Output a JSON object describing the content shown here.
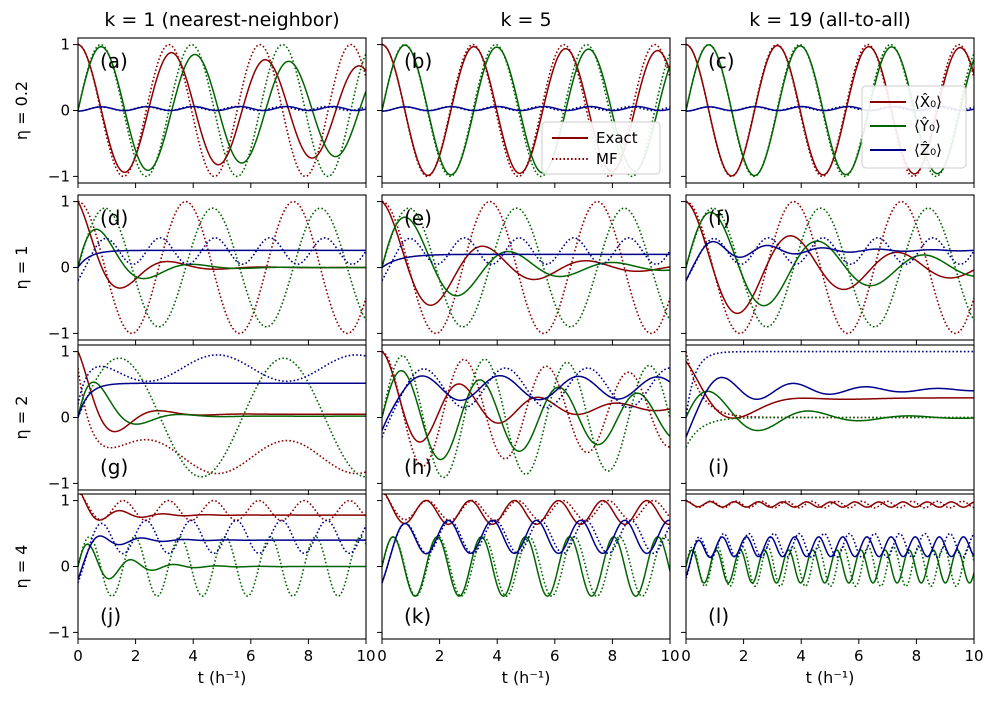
{
  "chart_data": {
    "type": "line",
    "x_label": "t (h⁻¹)",
    "x_range": [
      0,
      10
    ],
    "x_ticks": [
      "0",
      "2",
      "4",
      "6",
      "8",
      "10"
    ],
    "y_range": [
      -1.1,
      1.1
    ],
    "y_ticks": [
      "−1",
      "0",
      "1"
    ],
    "column_titles": [
      "k = 1 (nearest-neighbor)",
      "k = 5",
      "k = 19 (all-to-all)"
    ],
    "row_labels": [
      "η = 0.2",
      "η = 1",
      "η = 2",
      "η = 4"
    ],
    "colors": {
      "X": "#8b0000",
      "Y": "#006400",
      "Z": "#00008b"
    },
    "legend_style": {
      "labels": [
        "Exact",
        "MF"
      ],
      "panel": "b",
      "location": "lower-right"
    },
    "legend_observables": {
      "labels": [
        "⟨X̂₀⟩",
        "⟨Ŷ₀⟩",
        "⟨Ẑ₀⟩"
      ],
      "panel": "c",
      "location": "center-right"
    },
    "series_info": "Solid = Exact dynamics, dotted = MF (mean field). Each series given as damped cosine parameters (amplitude A, angular frequency w, phase p, damping g, offset c with relaxation time tau): value(t) = c_inf + (c0 - c_inf)exp(-t/tau) + A exp(-g t) cos(w t + p).",
    "panels": [
      {
        "id": "a",
        "label": "(a)",
        "row": 0,
        "col": 0,
        "series": [
          {
            "obs": "X",
            "style": "Exact",
            "A": 1.0,
            "w": 1.93,
            "p": 0,
            "g": 0.04,
            "c0": 0,
            "cinf": 0,
            "tau": 1
          },
          {
            "obs": "X",
            "style": "MF",
            "A": 1.0,
            "w": 1.99,
            "p": 0,
            "g": 0.0,
            "c0": 0,
            "cinf": 0,
            "tau": 1
          },
          {
            "obs": "Y",
            "style": "Exact",
            "A": -1.0,
            "w": 1.93,
            "p": 1.5708,
            "g": 0.04,
            "c0": 0,
            "cinf": 0,
            "tau": 1
          },
          {
            "obs": "Y",
            "style": "MF",
            "A": -1.0,
            "w": 1.99,
            "p": 1.5708,
            "g": 0.0,
            "c0": 0,
            "cinf": 0,
            "tau": 1
          },
          {
            "obs": "Z",
            "style": "Exact",
            "A": 0.03,
            "w": 3.9,
            "p": 3.14,
            "g": 0.0,
            "c0": 0.02,
            "cinf": 0.03,
            "tau": 1
          },
          {
            "obs": "Z",
            "style": "MF",
            "A": 0.03,
            "w": 4.0,
            "p": 3.14,
            "g": 0.0,
            "c0": 0.02,
            "cinf": 0.03,
            "tau": 1
          }
        ]
      },
      {
        "id": "b",
        "label": "(b)",
        "row": 0,
        "col": 1,
        "series": [
          {
            "obs": "X",
            "style": "Exact",
            "A": 1.0,
            "w": 1.97,
            "p": 0,
            "g": 0.01,
            "c0": 0,
            "cinf": 0,
            "tau": 1
          },
          {
            "obs": "X",
            "style": "MF",
            "A": 1.0,
            "w": 1.99,
            "p": 0,
            "g": 0.0,
            "c0": 0,
            "cinf": 0,
            "tau": 1
          },
          {
            "obs": "Y",
            "style": "Exact",
            "A": -1.0,
            "w": 1.97,
            "p": 1.5708,
            "g": 0.01,
            "c0": 0,
            "cinf": 0,
            "tau": 1
          },
          {
            "obs": "Y",
            "style": "MF",
            "A": -1.0,
            "w": 1.99,
            "p": 1.5708,
            "g": 0.0,
            "c0": 0,
            "cinf": 0,
            "tau": 1
          },
          {
            "obs": "Z",
            "style": "Exact",
            "A": 0.03,
            "w": 3.9,
            "p": 3.14,
            "g": 0.0,
            "c0": 0.02,
            "cinf": 0.03,
            "tau": 1
          },
          {
            "obs": "Z",
            "style": "MF",
            "A": 0.03,
            "w": 4.0,
            "p": 3.14,
            "g": 0.0,
            "c0": 0.02,
            "cinf": 0.03,
            "tau": 1
          }
        ]
      },
      {
        "id": "c",
        "label": "(c)",
        "row": 0,
        "col": 2,
        "series": [
          {
            "obs": "X",
            "style": "Exact",
            "A": 1.0,
            "w": 1.98,
            "p": 0,
            "g": 0.005,
            "c0": 0,
            "cinf": 0,
            "tau": 1
          },
          {
            "obs": "X",
            "style": "MF",
            "A": 1.0,
            "w": 1.99,
            "p": 0,
            "g": 0.0,
            "c0": 0,
            "cinf": 0,
            "tau": 1
          },
          {
            "obs": "Y",
            "style": "Exact",
            "A": -1.0,
            "w": 1.98,
            "p": 1.5708,
            "g": 0.005,
            "c0": 0,
            "cinf": 0,
            "tau": 1
          },
          {
            "obs": "Y",
            "style": "MF",
            "A": -1.0,
            "w": 1.99,
            "p": 1.5708,
            "g": 0.0,
            "c0": 0,
            "cinf": 0,
            "tau": 1
          },
          {
            "obs": "Z",
            "style": "Exact",
            "A": 0.03,
            "w": 3.9,
            "p": 3.14,
            "g": 0.0,
            "c0": 0.02,
            "cinf": 0.03,
            "tau": 1
          },
          {
            "obs": "Z",
            "style": "MF",
            "A": 0.03,
            "w": 4.0,
            "p": 3.14,
            "g": 0.0,
            "c0": 0.02,
            "cinf": 0.03,
            "tau": 1
          }
        ]
      },
      {
        "id": "d",
        "label": "(d)",
        "row": 1,
        "col": 0,
        "series": [
          {
            "obs": "X",
            "style": "Exact",
            "A": 1.0,
            "w": 1.9,
            "p": 0,
            "g": 0.75,
            "c0": 0,
            "cinf": 0,
            "tau": 1
          },
          {
            "obs": "X",
            "style": "MF",
            "A": 1.0,
            "w": 1.68,
            "p": 0,
            "g": 0.0,
            "c0": 0,
            "cinf": 0,
            "tau": 1
          },
          {
            "obs": "Y",
            "style": "Exact",
            "A": -1.0,
            "w": 1.9,
            "p": 1.5708,
            "g": 0.75,
            "c0": 0,
            "cinf": 0,
            "tau": 1
          },
          {
            "obs": "Y",
            "style": "MF",
            "A": -0.9,
            "w": 1.68,
            "p": 1.5708,
            "g": 0.0,
            "c0": 0,
            "cinf": 0,
            "tau": 1
          },
          {
            "obs": "Z",
            "style": "Exact",
            "A": 0.0,
            "w": 1.9,
            "p": 0,
            "g": 0.0,
            "c0": 0,
            "cinf": 0.26,
            "tau": 0.4
          },
          {
            "obs": "Z",
            "style": "MF",
            "A": 0.2,
            "w": 3.3,
            "p": 3.14,
            "g": 0.0,
            "c0": 0,
            "cinf": 0.25,
            "tau": 0.3
          }
        ]
      },
      {
        "id": "e",
        "label": "(e)",
        "row": 1,
        "col": 1,
        "series": [
          {
            "obs": "X",
            "style": "Exact",
            "A": 1.0,
            "w": 1.75,
            "p": 0,
            "g": 0.32,
            "c0": 0,
            "cinf": 0,
            "tau": 1
          },
          {
            "obs": "X",
            "style": "MF",
            "A": 1.0,
            "w": 1.68,
            "p": 0,
            "g": 0.0,
            "c0": 0,
            "cinf": 0,
            "tau": 1
          },
          {
            "obs": "Y",
            "style": "Exact",
            "A": -1.0,
            "w": 1.75,
            "p": 1.5708,
            "g": 0.32,
            "c0": 0,
            "cinf": 0,
            "tau": 1
          },
          {
            "obs": "Y",
            "style": "MF",
            "A": -0.9,
            "w": 1.68,
            "p": 1.5708,
            "g": 0.0,
            "c0": 0,
            "cinf": 0,
            "tau": 1
          },
          {
            "obs": "Z",
            "style": "Exact",
            "A": 0.0,
            "w": 1.75,
            "p": 0,
            "g": 0.0,
            "c0": 0,
            "cinf": 0.2,
            "tau": 0.6
          },
          {
            "obs": "Z",
            "style": "MF",
            "A": 0.2,
            "w": 3.3,
            "p": 3.14,
            "g": 0.0,
            "c0": 0,
            "cinf": 0.25,
            "tau": 0.3
          }
        ]
      },
      {
        "id": "f",
        "label": "(f)",
        "row": 1,
        "col": 2,
        "series": [
          {
            "obs": "X",
            "style": "Exact",
            "A": 1.0,
            "w": 1.7,
            "p": 0,
            "g": 0.2,
            "c0": 0,
            "cinf": 0,
            "tau": 1
          },
          {
            "obs": "X",
            "style": "MF",
            "A": 1.0,
            "w": 1.68,
            "p": 0,
            "g": 0.0,
            "c0": 0,
            "cinf": 0,
            "tau": 1
          },
          {
            "obs": "Y",
            "style": "Exact",
            "A": -1.0,
            "w": 1.7,
            "p": 1.5708,
            "g": 0.2,
            "c0": 0,
            "cinf": 0,
            "tau": 1
          },
          {
            "obs": "Y",
            "style": "MF",
            "A": -0.9,
            "w": 1.68,
            "p": 1.5708,
            "g": 0.0,
            "c0": 0,
            "cinf": 0,
            "tau": 1
          },
          {
            "obs": "Z",
            "style": "Exact",
            "A": 0.2,
            "w": 3.3,
            "p": 3.14,
            "g": 0.35,
            "c0": 0,
            "cinf": 0.26,
            "tau": 0.3
          },
          {
            "obs": "Z",
            "style": "MF",
            "A": 0.2,
            "w": 3.3,
            "p": 3.14,
            "g": 0.0,
            "c0": 0,
            "cinf": 0.25,
            "tau": 0.3
          }
        ]
      },
      {
        "id": "g",
        "label": "(g)",
        "row": 2,
        "col": 0,
        "series": [
          {
            "obs": "X",
            "style": "Exact",
            "A": 1.0,
            "w": 2.1,
            "p": 0,
            "g": 1.0,
            "c0": 0,
            "cinf": 0.05,
            "tau": 1
          },
          {
            "obs": "X",
            "style": "MF",
            "A": 0.25,
            "w": 1.3,
            "p": 3.14,
            "g": 0.0,
            "c0": 1.0,
            "cinf": -0.6,
            "tau": 0.5
          },
          {
            "obs": "Y",
            "style": "Exact",
            "A": -1.0,
            "w": 2.1,
            "p": 1.5708,
            "g": 1.0,
            "c0": 0,
            "cinf": 0.02,
            "tau": 1
          },
          {
            "obs": "Y",
            "style": "MF",
            "A": -0.9,
            "w": 1.1,
            "p": 1.5708,
            "g": 0.0,
            "c0": 0,
            "cinf": 0,
            "tau": 1
          },
          {
            "obs": "Z",
            "style": "Exact",
            "A": 0.0,
            "w": 1.0,
            "p": 0,
            "g": 0.0,
            "c0": 0,
            "cinf": 0.52,
            "tau": 0.35
          },
          {
            "obs": "Z",
            "style": "MF",
            "A": 0.2,
            "w": 1.3,
            "p": 0,
            "g": 0.0,
            "c0": 0,
            "cinf": 0.75,
            "tau": 0.35
          }
        ]
      },
      {
        "id": "h",
        "label": "(h)",
        "row": 2,
        "col": 1,
        "series": [
          {
            "obs": "X",
            "style": "Exact",
            "A": 0.8,
            "w": 2.3,
            "p": 0,
            "g": 0.3,
            "c0": 0.2,
            "cinf": 0.15,
            "tau": 1
          },
          {
            "obs": "X",
            "style": "MF",
            "A": 0.9,
            "w": 2.2,
            "p": 0,
            "g": 0.05,
            "c0": 0.1,
            "cinf": 0.1,
            "tau": 1
          },
          {
            "obs": "Y",
            "style": "Exact",
            "A": -0.75,
            "w": 2.3,
            "p": 1.5708,
            "g": 0.08,
            "c0": 0,
            "cinf": 0,
            "tau": 1
          },
          {
            "obs": "Y",
            "style": "MF",
            "A": -0.95,
            "w": 2.2,
            "p": 1.5708,
            "g": 0.02,
            "c0": 0,
            "cinf": 0,
            "tau": 1
          },
          {
            "obs": "Z",
            "style": "Exact",
            "A": 0.2,
            "w": 2.3,
            "p": 3.14,
            "g": 0.02,
            "c0": 0,
            "cinf": 0.45,
            "tau": 0.4
          },
          {
            "obs": "Z",
            "style": "MF",
            "A": 0.3,
            "w": 2.2,
            "p": 3.14,
            "g": 0.0,
            "c0": 0,
            "cinf": 0.45,
            "tau": 0.4
          }
        ]
      },
      {
        "id": "i",
        "label": "(i)",
        "row": 2,
        "col": 2,
        "series": [
          {
            "obs": "X",
            "style": "Exact",
            "A": 0.85,
            "w": 1.5,
            "p": 0,
            "g": 0.8,
            "c0": 0,
            "cinf": 0.3,
            "tau": 2
          },
          {
            "obs": "X",
            "style": "MF",
            "A": 0.0,
            "w": 1.0,
            "p": 0,
            "g": 0.0,
            "c0": 1.0,
            "cinf": 0.0,
            "tau": 0.5
          },
          {
            "obs": "Y",
            "style": "Exact",
            "A": -0.55,
            "w": 1.8,
            "p": 1.5708,
            "g": 0.4,
            "c0": 0,
            "cinf": 0.0,
            "tau": 1
          },
          {
            "obs": "Y",
            "style": "MF",
            "A": 0.0,
            "w": 1.0,
            "p": 0,
            "g": 0.0,
            "c0": -0.45,
            "cinf": 0.0,
            "tau": 0.5
          },
          {
            "obs": "Z",
            "style": "Exact",
            "A": 0.3,
            "w": 2.5,
            "p": 3.14,
            "g": 0.3,
            "c0": 0,
            "cinf": 0.42,
            "tau": 0.4
          },
          {
            "obs": "Z",
            "style": "MF",
            "A": 0.0,
            "w": 1.0,
            "p": 0,
            "g": 0.0,
            "c0": 0,
            "cinf": 1.0,
            "tau": 0.3
          }
        ]
      },
      {
        "id": "j",
        "label": "(j)",
        "row": 3,
        "col": 0,
        "series": [
          {
            "obs": "X",
            "style": "Exact",
            "A": 0.2,
            "w": 4.2,
            "p": 0,
            "g": 0.8,
            "c0": 1.0,
            "cinf": 0.78,
            "tau": 0.4
          },
          {
            "obs": "X",
            "style": "MF",
            "A": 0.15,
            "w": 4.0,
            "p": 0,
            "g": 0.0,
            "c0": 1.0,
            "cinf": 0.85,
            "tau": 0.3
          },
          {
            "obs": "Y",
            "style": "Exact",
            "A": -0.45,
            "w": 4.2,
            "p": 1.5708,
            "g": 0.8,
            "c0": 0,
            "cinf": 0.0,
            "tau": 1
          },
          {
            "obs": "Y",
            "style": "MF",
            "A": -0.45,
            "w": 4.0,
            "p": 1.5708,
            "g": 0.0,
            "c0": 0,
            "cinf": 0.0,
            "tau": 1
          },
          {
            "obs": "Z",
            "style": "Exact",
            "A": 0.2,
            "w": 4.2,
            "p": 3.14,
            "g": 0.8,
            "c0": 0,
            "cinf": 0.4,
            "tau": 0.35
          },
          {
            "obs": "Z",
            "style": "MF",
            "A": 0.25,
            "w": 4.0,
            "p": 3.14,
            "g": 0.0,
            "c0": 0,
            "cinf": 0.45,
            "tau": 0.35
          }
        ]
      },
      {
        "id": "k",
        "label": "(k)",
        "row": 3,
        "col": 1,
        "series": [
          {
            "obs": "X",
            "style": "Exact",
            "A": 0.18,
            "w": 4.1,
            "p": 0,
            "g": 0.0,
            "c0": 1.0,
            "cinf": 0.82,
            "tau": 0.3
          },
          {
            "obs": "X",
            "style": "MF",
            "A": 0.15,
            "w": 4.0,
            "p": 0,
            "g": 0.0,
            "c0": 1.0,
            "cinf": 0.85,
            "tau": 0.3
          },
          {
            "obs": "Y",
            "style": "Exact",
            "A": -0.45,
            "w": 4.1,
            "p": 1.5708,
            "g": 0.0,
            "c0": 0,
            "cinf": 0.0,
            "tau": 1
          },
          {
            "obs": "Y",
            "style": "MF",
            "A": -0.45,
            "w": 4.0,
            "p": 1.5708,
            "g": 0.0,
            "c0": 0,
            "cinf": 0.0,
            "tau": 1
          },
          {
            "obs": "Z",
            "style": "Exact",
            "A": 0.25,
            "w": 4.1,
            "p": 3.14,
            "g": 0.0,
            "c0": 0,
            "cinf": 0.45,
            "tau": 0.35
          },
          {
            "obs": "Z",
            "style": "MF",
            "A": 0.25,
            "w": 4.0,
            "p": 3.14,
            "g": 0.0,
            "c0": 0,
            "cinf": 0.45,
            "tau": 0.35
          }
        ]
      },
      {
        "id": "l",
        "label": "(l)",
        "row": 3,
        "col": 2,
        "series": [
          {
            "obs": "X",
            "style": "Exact",
            "A": 0.04,
            "w": 7.5,
            "p": 0,
            "g": 0.0,
            "c0": 0.95,
            "cinf": 0.94,
            "tau": 1
          },
          {
            "obs": "X",
            "style": "MF",
            "A": 0.05,
            "w": 7.2,
            "p": 0,
            "g": 0.0,
            "c0": 0.95,
            "cinf": 0.94,
            "tau": 1
          },
          {
            "obs": "Y",
            "style": "Exact",
            "A": -0.25,
            "w": 7.5,
            "p": 1.5708,
            "g": 0.0,
            "c0": 0,
            "cinf": 0.0,
            "tau": 1
          },
          {
            "obs": "Y",
            "style": "MF",
            "A": -0.3,
            "w": 7.2,
            "p": 1.5708,
            "g": 0.0,
            "c0": 0,
            "cinf": 0.0,
            "tau": 1
          },
          {
            "obs": "Z",
            "style": "Exact",
            "A": 0.15,
            "w": 7.5,
            "p": 3.14,
            "g": 0.0,
            "c0": 0,
            "cinf": 0.3,
            "tau": 0.25
          },
          {
            "obs": "Z",
            "style": "MF",
            "A": 0.18,
            "w": 7.2,
            "p": 3.14,
            "g": 0.0,
            "c0": 0,
            "cinf": 0.32,
            "tau": 0.25
          }
        ]
      }
    ]
  }
}
